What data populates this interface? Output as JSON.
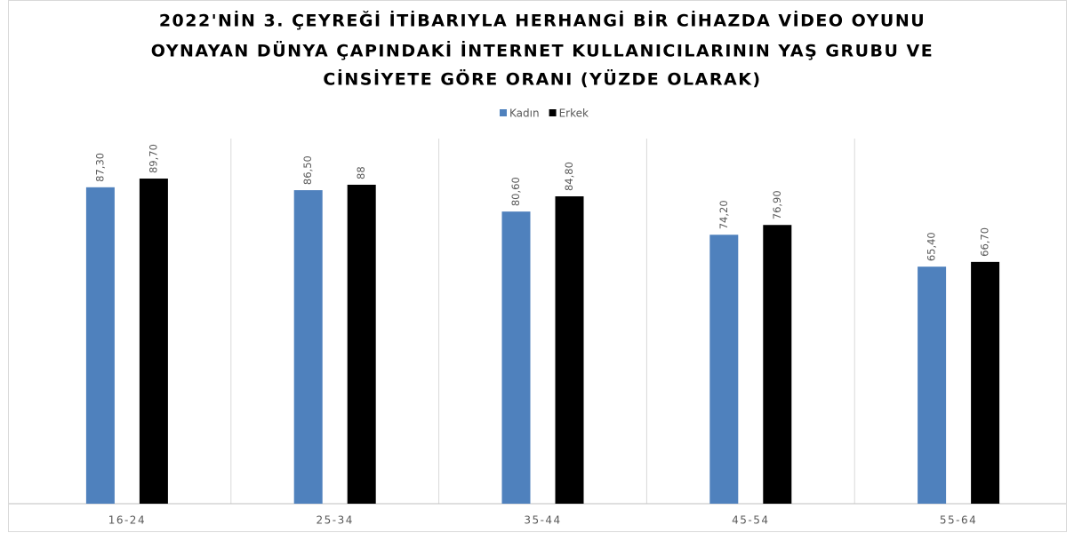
{
  "chart_data": {
    "type": "bar",
    "title": [
      "2022'NİN 3. ÇEYREĞİ İTİBARIYLA HERHANGİ BİR CİHAZDA VİDEO OYUNU",
      "OYNAYAN DÜNYA ÇAPINDAKİ İNTERNET KULLANICILARININ YAŞ GRUBU VE",
      "CİNSİYETE GÖRE ORANI (YÜZDE OLARAK)"
    ],
    "categories": [
      "16-24",
      "25-34",
      "35-44",
      "45-54",
      "55-64"
    ],
    "series": [
      {
        "name": "Kadın",
        "color": "#4f81bd",
        "values": [
          87.3,
          86.5,
          80.6,
          74.2,
          65.4
        ],
        "value_labels": [
          "87,30",
          "86,50",
          "80,60",
          "74,20",
          "65,40"
        ]
      },
      {
        "name": "Erkek",
        "color": "#000000",
        "values": [
          89.7,
          88,
          84.8,
          76.9,
          66.7
        ],
        "value_labels": [
          "89,70",
          "88",
          "84,80",
          "76,90",
          "66,70"
        ]
      }
    ],
    "ylim": [
      0,
      100
    ],
    "legend": "top"
  }
}
